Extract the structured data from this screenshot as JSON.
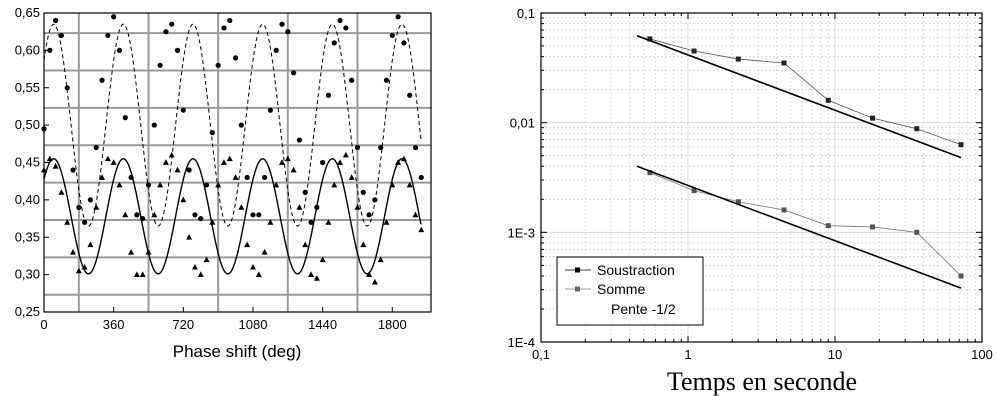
{
  "chart_data": [
    {
      "type": "scatter",
      "title": "",
      "xlabel": "Phase shift (deg)",
      "ylabel": "",
      "xlim": [
        0,
        2000
      ],
      "ylim": [
        0.25,
        0.65
      ],
      "x_ticks": [
        0,
        360,
        720,
        1080,
        1440,
        1800
      ],
      "x_tick_labels": [
        "0",
        "360",
        "720",
        "1080",
        "1440",
        "1800"
      ],
      "y_ticks": [
        0.25,
        0.3,
        0.35,
        0.4,
        0.45,
        0.5,
        0.55,
        0.6,
        0.65
      ],
      "y_tick_labels": [
        "0,25",
        "0,30",
        "0,35",
        "0,40",
        "0,45",
        "0,50",
        "0,55",
        "0,60",
        "0,65"
      ],
      "grid_y": [
        0.273,
        0.323,
        0.373,
        0.423,
        0.473,
        0.523,
        0.573,
        0.623
      ],
      "grid_x": [
        180,
        540,
        900,
        1260,
        1620
      ],
      "series": [
        {
          "marker": "circle",
          "line": "dashed",
          "fit": {
            "center": 0.5,
            "amplitude": 0.135,
            "period_deg": 360,
            "phase_deg": 50
          },
          "x": [
            0,
            30,
            60,
            90,
            120,
            150,
            180,
            210,
            240,
            270,
            300,
            330,
            360,
            390,
            420,
            450,
            480,
            510,
            540,
            570,
            600,
            630,
            660,
            690,
            720,
            750,
            780,
            810,
            840,
            870,
            900,
            930,
            960,
            990,
            1020,
            1050,
            1080,
            1110,
            1140,
            1170,
            1200,
            1230,
            1260,
            1290,
            1320,
            1350,
            1380,
            1410,
            1440,
            1470,
            1500,
            1530,
            1560,
            1590,
            1620,
            1650,
            1680,
            1710,
            1740,
            1770,
            1800,
            1830,
            1860,
            1890,
            1920,
            1950
          ],
          "y": [
            0.495,
            0.6,
            0.64,
            0.62,
            0.55,
            0.44,
            0.39,
            0.37,
            0.4,
            0.47,
            0.56,
            0.62,
            0.645,
            0.6,
            0.51,
            0.43,
            0.38,
            0.375,
            0.42,
            0.5,
            0.58,
            0.625,
            0.635,
            0.6,
            0.52,
            0.44,
            0.38,
            0.375,
            0.42,
            0.49,
            0.58,
            0.63,
            0.64,
            0.59,
            0.5,
            0.43,
            0.38,
            0.38,
            0.43,
            0.52,
            0.6,
            0.635,
            0.625,
            0.57,
            0.48,
            0.41,
            0.37,
            0.39,
            0.45,
            0.54,
            0.61,
            0.64,
            0.63,
            0.56,
            0.47,
            0.41,
            0.38,
            0.4,
            0.47,
            0.56,
            0.62,
            0.645,
            0.61,
            0.54,
            0.47,
            0.43
          ]
        },
        {
          "marker": "triangle",
          "line": "solid",
          "fit": {
            "center": 0.378,
            "amplitude": 0.077,
            "period_deg": 360,
            "phase_deg": 50
          },
          "x": [
            0,
            30,
            60,
            90,
            120,
            150,
            180,
            210,
            240,
            270,
            300,
            330,
            360,
            390,
            420,
            450,
            480,
            510,
            540,
            570,
            600,
            630,
            660,
            690,
            720,
            750,
            780,
            810,
            840,
            870,
            900,
            930,
            960,
            990,
            1020,
            1050,
            1080,
            1110,
            1140,
            1170,
            1200,
            1230,
            1260,
            1290,
            1320,
            1350,
            1380,
            1410,
            1440,
            1470,
            1500,
            1530,
            1560,
            1590,
            1620,
            1650,
            1680,
            1710,
            1740,
            1770,
            1800,
            1830,
            1860,
            1890,
            1920,
            1950
          ],
          "y": [
            0.44,
            0.455,
            0.445,
            0.41,
            0.37,
            0.33,
            0.305,
            0.31,
            0.34,
            0.39,
            0.43,
            0.455,
            0.45,
            0.42,
            0.38,
            0.33,
            0.3,
            0.3,
            0.33,
            0.38,
            0.42,
            0.45,
            0.46,
            0.44,
            0.4,
            0.35,
            0.31,
            0.3,
            0.32,
            0.37,
            0.42,
            0.45,
            0.455,
            0.43,
            0.39,
            0.34,
            0.31,
            0.3,
            0.33,
            0.37,
            0.42,
            0.45,
            0.455,
            0.44,
            0.39,
            0.34,
            0.3,
            0.295,
            0.32,
            0.37,
            0.42,
            0.45,
            0.46,
            0.43,
            0.39,
            0.34,
            0.3,
            0.29,
            0.32,
            0.37,
            0.42,
            0.45,
            0.455,
            0.42,
            0.38,
            0.36
          ]
        }
      ]
    },
    {
      "type": "line",
      "title": "",
      "xlabel": "Temps en seconde",
      "ylabel": "",
      "x_scale": "log",
      "y_scale": "log",
      "xlim": [
        0.1,
        100
      ],
      "ylim": [
        0.0001,
        0.1
      ],
      "x_ticks": [
        0.1,
        1,
        10,
        100
      ],
      "x_tick_labels": [
        "0,1",
        "1",
        "10",
        "100"
      ],
      "y_ticks": [
        0.0001,
        0.001,
        0.01,
        0.1
      ],
      "y_tick_labels": [
        "1E-4",
        "1E-3",
        "0,01",
        "0,1"
      ],
      "grid": true,
      "legend_position": "bottom-left",
      "series": [
        {
          "name": "Soustraction",
          "marker": "square",
          "x": [
            0.55,
            1.1,
            2.2,
            4.5,
            9,
            18,
            36,
            72
          ],
          "y": [
            0.058,
            0.045,
            0.038,
            0.035,
            0.016,
            0.011,
            0.0088,
            0.0063
          ]
        },
        {
          "name": "Somme",
          "marker": "square",
          "x": [
            0.55,
            1.1,
            2.2,
            4.5,
            9,
            18,
            36,
            72
          ],
          "y": [
            0.0035,
            0.0024,
            0.0019,
            0.0016,
            0.00115,
            0.00112,
            0.001,
            0.0004
          ]
        },
        {
          "name": "Pente -1/2",
          "line": "solid",
          "x": [
            0.45,
            72
          ],
          "y": [
            0.062,
            0.0048
          ]
        },
        {
          "name": "",
          "line": "solid",
          "x": [
            0.45,
            72
          ],
          "y": [
            0.004,
            0.00031
          ]
        }
      ]
    }
  ]
}
